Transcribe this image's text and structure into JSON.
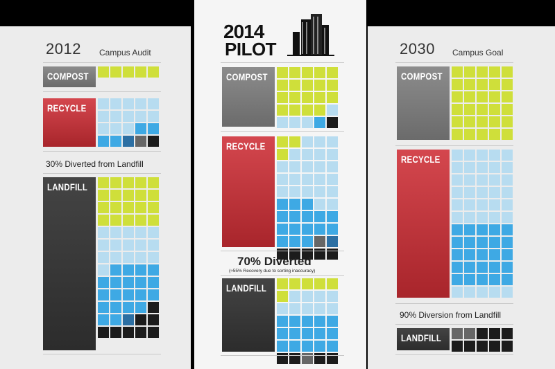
{
  "colors": {
    "compost": "#cfdf3a",
    "recycle_light": "#b7dcf0",
    "recycle_mid": "#3ea9e4",
    "recycle_dark": "#2c6fa3",
    "gray": "#666666",
    "landfill": "#1c1c1c"
  },
  "left": {
    "year": "2012",
    "subtitle": "Campus Audit",
    "compost_label": "COMPOST",
    "recycle_label": "RECYCLE",
    "landfill_label": "LANDFILL",
    "caption": "30% Diverted from Landfill"
  },
  "center": {
    "year": "2014",
    "word": "PILOT",
    "compost_label": "COMPOST",
    "recycle_label": "RECYCLE",
    "landfill_label": "LANDFILL",
    "caption": "70%  Diverted",
    "subcaption": "(≈55% Recovery due to sorting inaccuracy)"
  },
  "right": {
    "year": "2030",
    "subtitle": "Campus Goal",
    "compost_label": "COMPOST",
    "recycle_label": "RECYCLE",
    "landfill_label": "LANDFILL",
    "caption": "90% Diversion from Landfill"
  },
  "grids": {
    "l_compost": [
      "ccccc"
    ],
    "l_recycle": [
      "LLLLL",
      "LLLLL",
      "LLLMM",
      "MMDGK"
    ],
    "l_landfill": [
      "ccccc",
      "ccccc",
      "ccccc",
      "ccccc",
      "LLLLL",
      "LLLLL",
      "LLLLL",
      "LMMMM",
      "MMMMM",
      "MMMMM",
      "MMMMK",
      "MMDKK",
      "KKKKK"
    ],
    "c_compost": [
      "ccccc",
      "ccccc",
      "ccccc",
      "ccccL",
      "LLLMK"
    ],
    "c_recycle": [
      "ccLLL",
      "cLLLL",
      "LLLLL",
      "LLLLL",
      "LLLLL",
      "MMMLL",
      "MMMMM",
      "MMMMM",
      "MMMGD",
      "KKKKK"
    ],
    "c_landfill": [
      "ccccc",
      "cLLLL",
      "LLLLL",
      "MMMMM",
      "MMMMM",
      "MMMMM",
      "KKGKK"
    ],
    "r_compost": [
      "ccccc",
      "ccccc",
      "ccccc",
      "ccccc",
      "ccccc",
      "ccccc"
    ],
    "r_recycle": [
      "LLLLL",
      "LLLLL",
      "LLLLL",
      "LLLLL",
      "LLLLL",
      "LLLLL",
      "MMMMM",
      "MMMMM",
      "MMMMM",
      "MMMMM",
      "MMMMM",
      "LLLLL"
    ],
    "r_landfill": [
      "GGKKK",
      "KKKKK"
    ]
  }
}
